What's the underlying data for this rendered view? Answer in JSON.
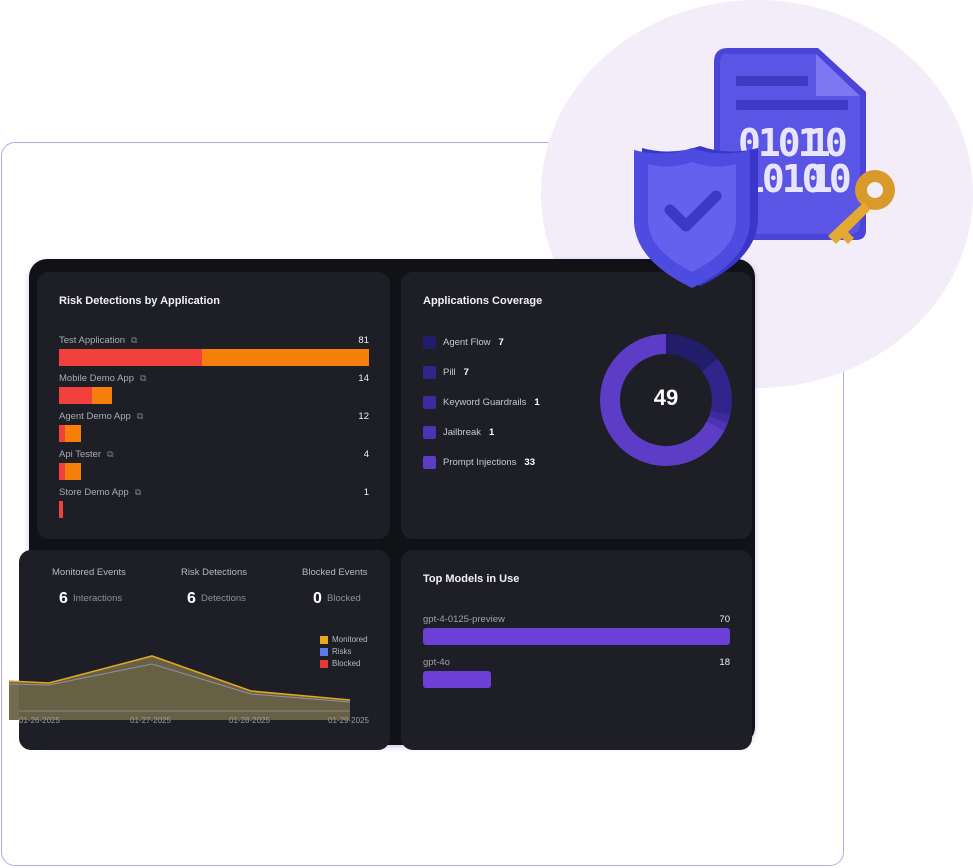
{
  "risk": {
    "title": "Risk Detections by Application",
    "rows": [
      {
        "label": "Test Application",
        "value": "81",
        "red": 46,
        "orange": 54,
        "width": 1.0
      },
      {
        "label": "Mobile Demo App",
        "value": "14",
        "red": 62,
        "orange": 38,
        "width": 0.17
      },
      {
        "label": "Agent Demo App",
        "value": "12",
        "red": 28,
        "orange": 72,
        "width": 0.07
      },
      {
        "label": "Api Tester",
        "value": "4",
        "red": 28,
        "orange": 72,
        "width": 0.07
      },
      {
        "label": "Store Demo App",
        "value": "1",
        "red": 100,
        "orange": 0,
        "width": 0.013
      }
    ]
  },
  "coverage": {
    "title": "Applications Coverage",
    "total": "49",
    "items": [
      {
        "label": "Agent Flow",
        "count": "7",
        "color": "#221d6b"
      },
      {
        "label": "Pill",
        "count": "7",
        "color": "#32248a"
      },
      {
        "label": "Keyword Guardrails",
        "count": "1",
        "color": "#3c2a9e"
      },
      {
        "label": "Jailbreak",
        "count": "1",
        "color": "#4b33b4"
      },
      {
        "label": "Prompt Injections",
        "count": "33",
        "color": "#5e3dc6"
      }
    ]
  },
  "events": {
    "metrics": [
      {
        "title": "Monitored Events",
        "num": "6",
        "sub": "Interactions"
      },
      {
        "title": "Risk Detections",
        "num": "6",
        "sub": "Detections"
      },
      {
        "title": "Blocked Events",
        "num": "0",
        "sub": "Blocked"
      }
    ],
    "legend": [
      {
        "label": "Monitored",
        "color": "#e7a91d"
      },
      {
        "label": "Risks",
        "color": "#5b7be8"
      },
      {
        "label": "Blocked",
        "color": "#e53834"
      }
    ],
    "x_labels": [
      "01-26-2025",
      "01-27-2025",
      "01-28-2025",
      "01-29-2025"
    ]
  },
  "models": {
    "title": "Top Models in Use",
    "items": [
      {
        "label": "gpt-4-0125-preview",
        "value": "70",
        "width": 1.0
      },
      {
        "label": "gpt-4o",
        "value": "18",
        "width": 0.22
      }
    ]
  }
}
